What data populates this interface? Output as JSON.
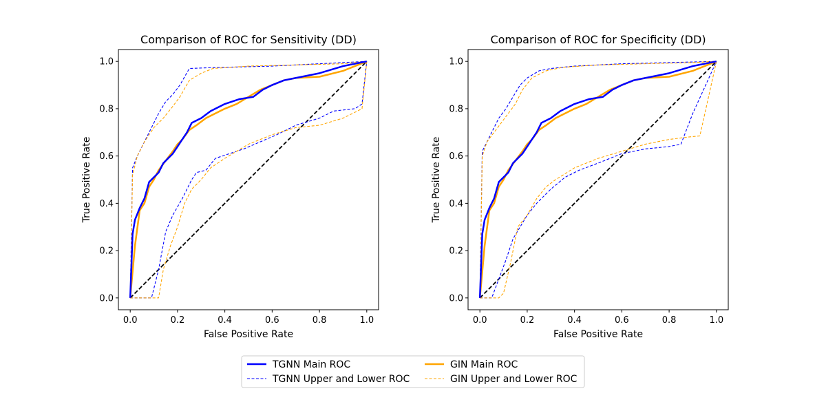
{
  "chart_data": [
    {
      "type": "line",
      "title": "Comparison of ROC for Sensitivity (DD)",
      "xlabel": "False Positive Rate",
      "ylabel": "True Positive Rate",
      "xlim": [
        -0.05,
        1.05
      ],
      "ylim": [
        -0.05,
        1.05
      ],
      "xticks": [
        0.0,
        0.2,
        0.4,
        0.6,
        0.8,
        1.0
      ],
      "yticks": [
        0.0,
        0.2,
        0.4,
        0.6,
        0.8,
        1.0
      ],
      "tick_labels": [
        "0.0",
        "0.2",
        "0.4",
        "0.6",
        "0.8",
        "1.0"
      ],
      "series": [
        {
          "name": "Diagonal",
          "style": "diagonal",
          "x": [
            0,
            1
          ],
          "y": [
            0,
            1
          ]
        },
        {
          "name": "TGNN Upper",
          "style": "tgnn-band",
          "x": [
            0,
            0.01,
            0.03,
            0.06,
            0.09,
            0.12,
            0.15,
            0.18,
            0.21,
            0.25,
            0.3,
            0.4,
            0.6,
            0.8,
            1.0
          ],
          "y": [
            0,
            0.55,
            0.6,
            0.66,
            0.72,
            0.78,
            0.83,
            0.86,
            0.9,
            0.97,
            0.972,
            0.975,
            0.98,
            0.99,
            1.0
          ]
        },
        {
          "name": "TGNN Lower",
          "style": "tgnn-band",
          "x": [
            0,
            0.09,
            0.12,
            0.15,
            0.18,
            0.22,
            0.26,
            0.28,
            0.32,
            0.36,
            0.42,
            0.48,
            0.55,
            0.62,
            0.7,
            0.8,
            0.86,
            0.95,
            0.98,
            1.0
          ],
          "y": [
            0,
            0,
            0.12,
            0.28,
            0.35,
            0.42,
            0.5,
            0.53,
            0.54,
            0.59,
            0.61,
            0.63,
            0.66,
            0.69,
            0.73,
            0.76,
            0.79,
            0.8,
            0.82,
            1.0
          ]
        },
        {
          "name": "GIN Upper",
          "style": "gin-band",
          "x": [
            0,
            0.01,
            0.03,
            0.06,
            0.1,
            0.14,
            0.18,
            0.21,
            0.25,
            0.3,
            0.35,
            0.5,
            0.7,
            0.9,
            1.0
          ],
          "y": [
            0,
            0.52,
            0.6,
            0.66,
            0.72,
            0.76,
            0.81,
            0.85,
            0.92,
            0.95,
            0.97,
            0.98,
            0.985,
            0.99,
            1.0
          ]
        },
        {
          "name": "GIN Lower",
          "style": "gin-band",
          "x": [
            0,
            0.12,
            0.14,
            0.17,
            0.2,
            0.23,
            0.26,
            0.3,
            0.34,
            0.4,
            0.5,
            0.6,
            0.7,
            0.8,
            0.9,
            0.98,
            1.0
          ],
          "y": [
            0,
            0,
            0.12,
            0.22,
            0.3,
            0.4,
            0.46,
            0.5,
            0.55,
            0.59,
            0.65,
            0.69,
            0.72,
            0.73,
            0.76,
            0.8,
            1.0
          ]
        },
        {
          "name": "GIN Main ROC",
          "style": "gin-main",
          "x": [
            0,
            0.02,
            0.04,
            0.06,
            0.08,
            0.1,
            0.12,
            0.15,
            0.18,
            0.2,
            0.22,
            0.25,
            0.28,
            0.32,
            0.36,
            0.4,
            0.45,
            0.5,
            0.55,
            0.6,
            0.65,
            0.7,
            0.8,
            0.9,
            1.0
          ],
          "y": [
            0,
            0.22,
            0.37,
            0.4,
            0.47,
            0.5,
            0.54,
            0.58,
            0.62,
            0.65,
            0.67,
            0.71,
            0.73,
            0.76,
            0.78,
            0.8,
            0.82,
            0.85,
            0.88,
            0.9,
            0.92,
            0.93,
            0.935,
            0.96,
            1.0
          ]
        },
        {
          "name": "TGNN Main ROC",
          "style": "tgnn-main",
          "x": [
            0,
            0.01,
            0.02,
            0.04,
            0.06,
            0.08,
            0.1,
            0.12,
            0.14,
            0.16,
            0.18,
            0.2,
            0.22,
            0.24,
            0.26,
            0.3,
            0.34,
            0.4,
            0.46,
            0.52,
            0.56,
            0.6,
            0.65,
            0.7,
            0.8,
            0.9,
            1.0
          ],
          "y": [
            0,
            0.27,
            0.33,
            0.38,
            0.42,
            0.49,
            0.51,
            0.53,
            0.57,
            0.59,
            0.61,
            0.64,
            0.67,
            0.7,
            0.74,
            0.76,
            0.79,
            0.82,
            0.84,
            0.85,
            0.88,
            0.9,
            0.92,
            0.93,
            0.95,
            0.98,
            1.0
          ]
        }
      ]
    },
    {
      "type": "line",
      "title": "Comparison of ROC for Specificity (DD)",
      "xlabel": "False Positive Rate",
      "ylabel": "True Positive Rate",
      "xlim": [
        -0.05,
        1.05
      ],
      "ylim": [
        -0.05,
        1.05
      ],
      "xticks": [
        0.0,
        0.2,
        0.4,
        0.6,
        0.8,
        1.0
      ],
      "yticks": [
        0.0,
        0.2,
        0.4,
        0.6,
        0.8,
        1.0
      ],
      "tick_labels": [
        "0.0",
        "0.2",
        "0.4",
        "0.6",
        "0.8",
        "1.0"
      ],
      "series": [
        {
          "name": "Diagonal",
          "style": "diagonal",
          "x": [
            0,
            1
          ],
          "y": [
            0,
            1
          ]
        },
        {
          "name": "TGNN Upper",
          "style": "tgnn-band",
          "x": [
            0,
            0.01,
            0.03,
            0.05,
            0.08,
            0.11,
            0.14,
            0.17,
            0.2,
            0.25,
            0.3,
            0.4,
            0.6,
            0.8,
            1.0
          ],
          "y": [
            0,
            0.62,
            0.66,
            0.7,
            0.76,
            0.8,
            0.85,
            0.9,
            0.93,
            0.96,
            0.97,
            0.98,
            0.99,
            0.995,
            1.0
          ]
        },
        {
          "name": "TGNN Lower",
          "style": "tgnn-band",
          "x": [
            0,
            0.05,
            0.08,
            0.11,
            0.14,
            0.17,
            0.2,
            0.24,
            0.3,
            0.36,
            0.42,
            0.5,
            0.6,
            0.7,
            0.8,
            0.85,
            0.9,
            1.0
          ],
          "y": [
            0,
            0,
            0.08,
            0.16,
            0.25,
            0.3,
            0.35,
            0.4,
            0.46,
            0.51,
            0.54,
            0.57,
            0.61,
            0.63,
            0.64,
            0.65,
            0.78,
            1.0
          ]
        },
        {
          "name": "GIN Upper",
          "style": "gin-band",
          "x": [
            0,
            0.01,
            0.03,
            0.06,
            0.09,
            0.12,
            0.15,
            0.18,
            0.22,
            0.28,
            0.35,
            0.5,
            0.7,
            0.9,
            1.0
          ],
          "y": [
            0,
            0.6,
            0.66,
            0.7,
            0.74,
            0.78,
            0.82,
            0.88,
            0.93,
            0.96,
            0.975,
            0.985,
            0.99,
            0.995,
            1.0
          ]
        },
        {
          "name": "GIN Lower",
          "style": "gin-band",
          "x": [
            0,
            0.08,
            0.1,
            0.13,
            0.16,
            0.2,
            0.24,
            0.28,
            0.32,
            0.4,
            0.5,
            0.6,
            0.7,
            0.8,
            0.88,
            0.93,
            1.0
          ],
          "y": [
            0,
            0,
            0.02,
            0.15,
            0.3,
            0.35,
            0.42,
            0.47,
            0.5,
            0.55,
            0.59,
            0.62,
            0.65,
            0.67,
            0.68,
            0.685,
            1.0
          ]
        },
        {
          "name": "GIN Main ROC",
          "style": "gin-main",
          "x": [
            0,
            0.02,
            0.04,
            0.06,
            0.08,
            0.1,
            0.12,
            0.15,
            0.18,
            0.2,
            0.22,
            0.25,
            0.28,
            0.32,
            0.36,
            0.4,
            0.45,
            0.5,
            0.55,
            0.6,
            0.65,
            0.7,
            0.8,
            0.9,
            1.0
          ],
          "y": [
            0,
            0.22,
            0.37,
            0.4,
            0.47,
            0.5,
            0.54,
            0.58,
            0.62,
            0.65,
            0.67,
            0.71,
            0.73,
            0.76,
            0.78,
            0.8,
            0.82,
            0.85,
            0.88,
            0.9,
            0.92,
            0.93,
            0.935,
            0.96,
            1.0
          ]
        },
        {
          "name": "TGNN Main ROC",
          "style": "tgnn-main",
          "x": [
            0,
            0.01,
            0.02,
            0.04,
            0.06,
            0.08,
            0.1,
            0.12,
            0.14,
            0.16,
            0.18,
            0.2,
            0.22,
            0.24,
            0.26,
            0.3,
            0.34,
            0.4,
            0.46,
            0.52,
            0.56,
            0.6,
            0.65,
            0.7,
            0.8,
            0.9,
            1.0
          ],
          "y": [
            0,
            0.27,
            0.33,
            0.38,
            0.42,
            0.49,
            0.51,
            0.53,
            0.57,
            0.59,
            0.61,
            0.64,
            0.67,
            0.7,
            0.74,
            0.76,
            0.79,
            0.82,
            0.84,
            0.85,
            0.88,
            0.9,
            0.92,
            0.93,
            0.95,
            0.98,
            1.0
          ]
        }
      ]
    }
  ],
  "legend": {
    "position": "bottom-center",
    "entries": [
      {
        "label": "TGNN Main ROC",
        "style": "tgnn-main"
      },
      {
        "label": "GIN Main ROC",
        "style": "gin-main"
      },
      {
        "label": "TGNN Upper and Lower ROC",
        "style": "tgnn-band"
      },
      {
        "label": "GIN Upper and Lower ROC",
        "style": "gin-band"
      }
    ]
  },
  "colors": {
    "tgnn": "#0000ff",
    "gin": "#ffa500",
    "diagonal": "#000000",
    "axes": "#000000"
  }
}
